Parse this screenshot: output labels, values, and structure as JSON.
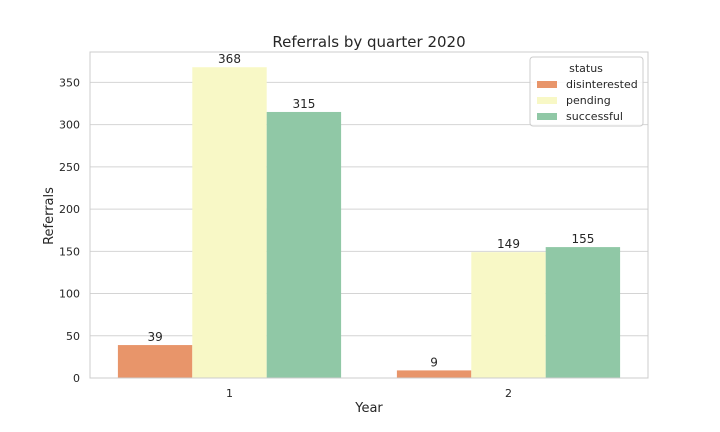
{
  "chart_data": {
    "type": "bar",
    "title": "Referrals by quarter 2020",
    "xlabel": "Year",
    "ylabel": "Referrals",
    "categories": [
      "1",
      "2"
    ],
    "ylim": [
      0,
      386
    ],
    "yticks": [
      0,
      50,
      100,
      150,
      200,
      250,
      300,
      350
    ],
    "grid": "y",
    "legend": {
      "title": "status",
      "position": "top-right"
    },
    "series": [
      {
        "name": "disinterested",
        "color": "#e8956a",
        "values": [
          39,
          9
        ]
      },
      {
        "name": "pending",
        "color": "#f8f8c6",
        "values": [
          368,
          149
        ]
      },
      {
        "name": "successful",
        "color": "#90c8a6",
        "values": [
          315,
          155
        ]
      }
    ]
  }
}
